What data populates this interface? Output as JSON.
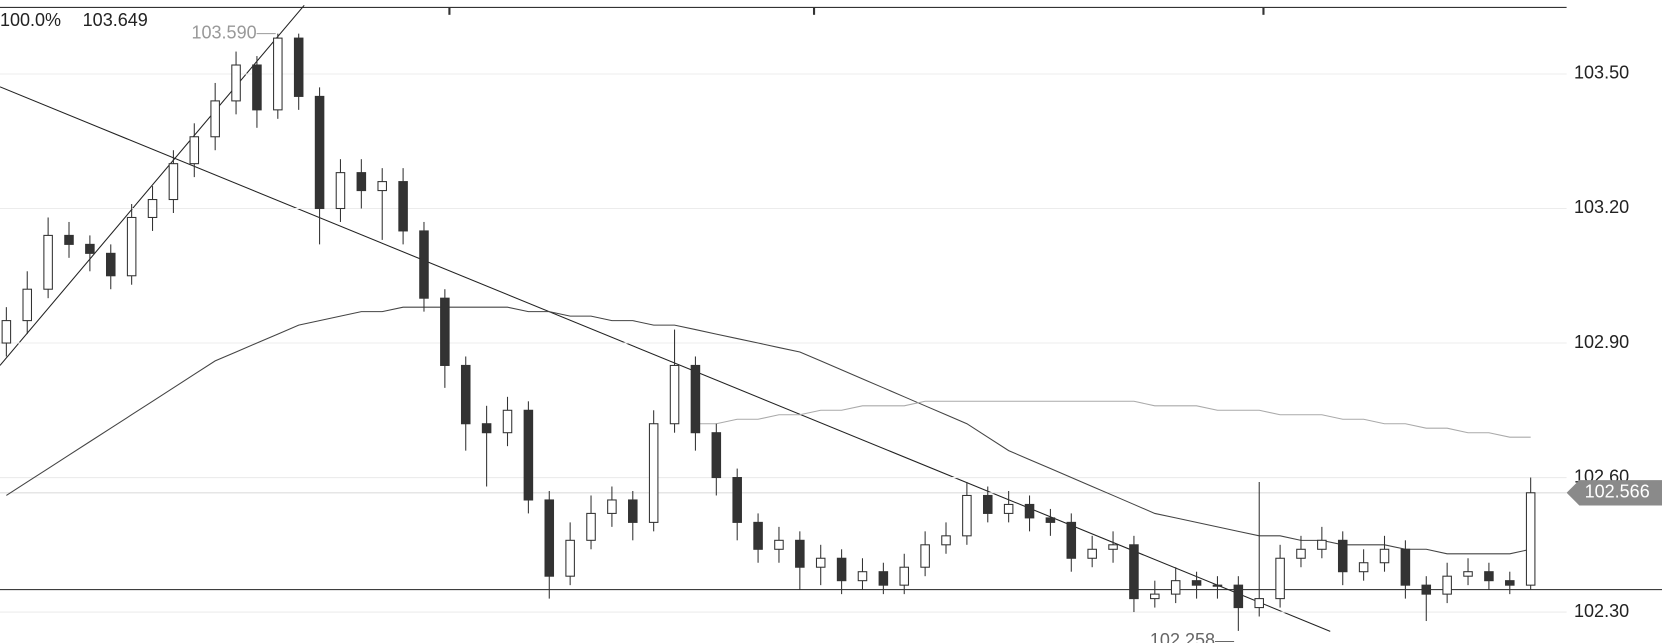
{
  "chart_data": {
    "type": "candlestick",
    "header": {
      "zoom": "100.0%",
      "price": 103.649
    },
    "ylim": [
      102.231,
      103.665
    ],
    "yticks": [
      {
        "value": 102.3,
        "label": "102.30"
      },
      {
        "value": 102.6,
        "label": "102.60"
      },
      {
        "value": 102.9,
        "label": "102.90"
      },
      {
        "value": 103.2,
        "label": "103.20"
      },
      {
        "value": 103.5,
        "label": "103.50"
      }
    ],
    "up_color": "#ffffff",
    "down_color": "#333333",
    "open": [
      102.9,
      102.95,
      103.02,
      103.14,
      103.12,
      103.1,
      103.05,
      103.18,
      103.22,
      103.3,
      103.36,
      103.44,
      103.52,
      103.42,
      103.58,
      103.45,
      103.2,
      103.28,
      103.24,
      103.26,
      103.15,
      103.0,
      102.85,
      102.72,
      102.7,
      102.75,
      102.55,
      102.38,
      102.46,
      102.52,
      102.55,
      102.5,
      102.72,
      102.85,
      102.7,
      102.6,
      102.5,
      102.44,
      102.46,
      102.4,
      102.42,
      102.37,
      102.39,
      102.36,
      102.4,
      102.45,
      102.47,
      102.56,
      102.52,
      102.54,
      102.51,
      102.5,
      102.42,
      102.44,
      102.45,
      102.33,
      102.34,
      102.37,
      102.36,
      102.36,
      102.31,
      102.33,
      102.42,
      102.44,
      102.46,
      102.39,
      102.41,
      102.44,
      102.36,
      102.34,
      102.38,
      102.39,
      102.37,
      102.36
    ],
    "high": [
      102.98,
      103.06,
      103.18,
      103.17,
      103.14,
      103.12,
      103.21,
      103.25,
      103.33,
      103.39,
      103.48,
      103.55,
      103.54,
      103.59,
      103.59,
      103.47,
      103.31,
      103.31,
      103.29,
      103.29,
      103.17,
      103.02,
      102.87,
      102.76,
      102.78,
      102.77,
      102.57,
      102.5,
      102.56,
      102.58,
      102.57,
      102.75,
      102.93,
      102.87,
      102.72,
      102.62,
      102.52,
      102.49,
      102.48,
      102.45,
      102.44,
      102.42,
      102.41,
      102.43,
      102.48,
      102.5,
      102.59,
      102.58,
      102.57,
      102.56,
      102.53,
      102.52,
      102.47,
      102.48,
      102.47,
      102.37,
      102.4,
      102.39,
      102.38,
      102.38,
      102.59,
      102.45,
      102.47,
      102.49,
      102.48,
      102.44,
      102.47,
      102.46,
      102.38,
      102.41,
      102.42,
      102.41,
      102.39,
      102.6
    ],
    "low": [
      102.87,
      102.92,
      103.0,
      103.09,
      103.06,
      103.02,
      103.03,
      103.15,
      103.19,
      103.27,
      103.33,
      103.41,
      103.38,
      103.4,
      103.42,
      103.12,
      103.17,
      103.2,
      103.13,
      103.12,
      102.97,
      102.8,
      102.66,
      102.58,
      102.67,
      102.52,
      102.33,
      102.36,
      102.44,
      102.49,
      102.46,
      102.48,
      102.7,
      102.66,
      102.56,
      102.46,
      102.41,
      102.41,
      102.35,
      102.36,
      102.34,
      102.35,
      102.34,
      102.34,
      102.38,
      102.43,
      102.45,
      102.5,
      102.5,
      102.48,
      102.47,
      102.39,
      102.4,
      102.41,
      102.3,
      102.31,
      102.32,
      102.33,
      102.33,
      102.258,
      102.29,
      102.31,
      102.4,
      102.42,
      102.36,
      102.37,
      102.39,
      102.33,
      102.28,
      102.32,
      102.36,
      102.35,
      102.34,
      102.35
    ],
    "close": [
      102.95,
      103.02,
      103.14,
      103.12,
      103.1,
      103.05,
      103.18,
      103.22,
      103.3,
      103.36,
      103.44,
      103.52,
      103.42,
      103.58,
      103.45,
      103.2,
      103.28,
      103.24,
      103.26,
      103.15,
      103.0,
      102.85,
      102.72,
      102.7,
      102.75,
      102.55,
      102.38,
      102.46,
      102.52,
      102.55,
      102.5,
      102.72,
      102.85,
      102.7,
      102.6,
      102.5,
      102.44,
      102.46,
      102.4,
      102.42,
      102.37,
      102.39,
      102.36,
      102.4,
      102.45,
      102.47,
      102.56,
      102.52,
      102.54,
      102.51,
      102.5,
      102.42,
      102.44,
      102.45,
      102.33,
      102.34,
      102.37,
      102.36,
      102.36,
      102.31,
      102.33,
      102.42,
      102.44,
      102.46,
      102.39,
      102.41,
      102.44,
      102.36,
      102.34,
      102.38,
      102.39,
      102.37,
      102.36,
      102.566
    ],
    "series": [
      {
        "color": "#444444",
        "values": [
          102.56,
          102.59,
          102.62,
          102.65,
          102.68,
          102.71,
          102.74,
          102.77,
          102.8,
          102.83,
          102.86,
          102.88,
          102.9,
          102.92,
          102.94,
          102.95,
          102.96,
          102.97,
          102.97,
          102.98,
          102.98,
          102.98,
          102.98,
          102.98,
          102.98,
          102.97,
          102.97,
          102.96,
          102.96,
          102.95,
          102.95,
          102.94,
          102.94,
          102.93,
          102.92,
          102.91,
          102.9,
          102.89,
          102.88,
          102.86,
          102.84,
          102.82,
          102.8,
          102.78,
          102.76,
          102.74,
          102.72,
          102.69,
          102.66,
          102.64,
          102.62,
          102.6,
          102.58,
          102.56,
          102.54,
          102.52,
          102.51,
          102.5,
          102.49,
          102.48,
          102.47,
          102.47,
          102.46,
          102.46,
          102.45,
          102.45,
          102.45,
          102.44,
          102.44,
          102.43,
          102.43,
          102.43,
          102.43,
          102.44
        ]
      },
      {
        "color": "#aaaaaa",
        "values": [
          null,
          null,
          null,
          null,
          null,
          null,
          null,
          null,
          null,
          null,
          null,
          null,
          null,
          null,
          null,
          null,
          null,
          null,
          null,
          null,
          null,
          null,
          null,
          null,
          null,
          null,
          null,
          null,
          null,
          null,
          null,
          null,
          null,
          102.72,
          102.72,
          102.73,
          102.73,
          102.74,
          102.74,
          102.75,
          102.75,
          102.76,
          102.76,
          102.76,
          102.77,
          102.77,
          102.77,
          102.77,
          102.77,
          102.77,
          102.77,
          102.77,
          102.77,
          102.77,
          102.77,
          102.76,
          102.76,
          102.76,
          102.75,
          102.75,
          102.75,
          102.74,
          102.74,
          102.74,
          102.73,
          102.73,
          102.72,
          102.72,
          102.71,
          102.71,
          102.7,
          102.7,
          102.69,
          102.69
        ]
      }
    ],
    "hline": 102.35,
    "high_label": {
      "value": 103.59,
      "label": "103.590"
    },
    "low_label": 102.258,
    "last_price": 102.566
  }
}
